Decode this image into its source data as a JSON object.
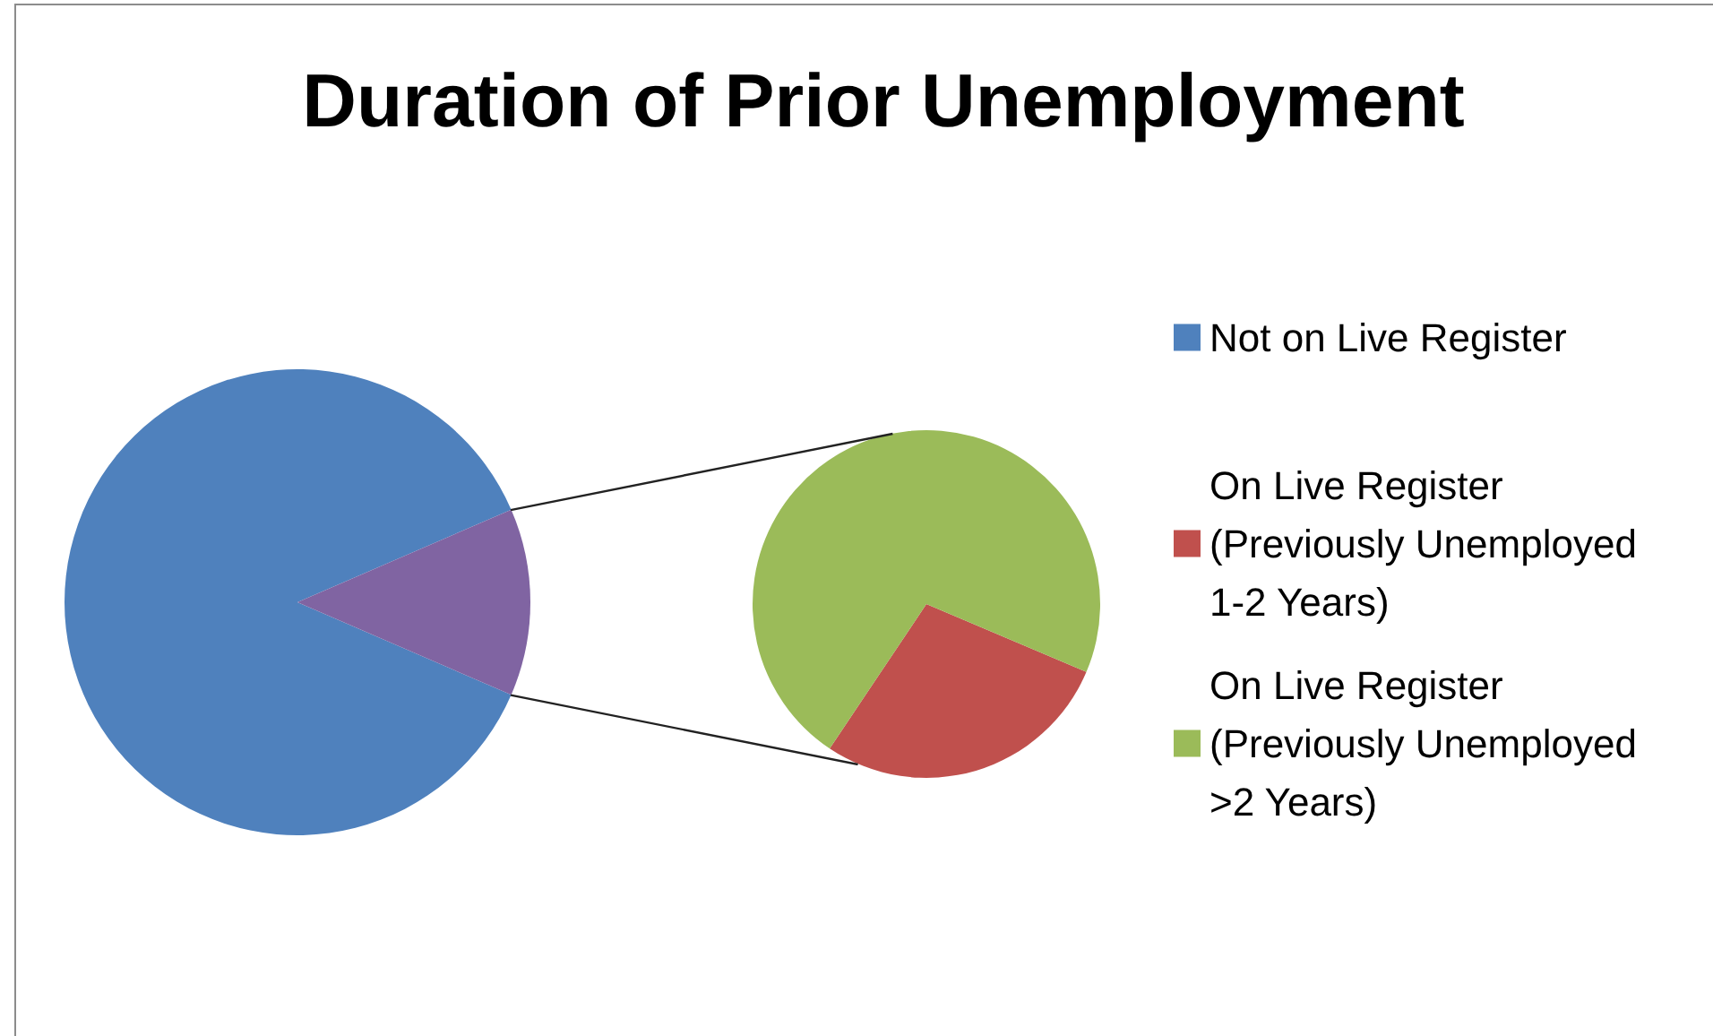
{
  "chart_data": [
    {
      "type": "pie",
      "title": "Duration of Prior Unemployment",
      "categories": [
        "Not on Live Register",
        null
      ],
      "values": [
        87,
        13
      ],
      "colors": [
        "#4f81bd",
        "#8064a2"
      ],
      "legend": "right"
    },
    {
      "type": "pie",
      "categories": [
        "On Live Register (Previously Unemployed 1-2 Years)",
        "On Live Register (Previously Unemployed >2 Years)"
      ],
      "values": [
        28,
        72
      ],
      "colors": [
        "#c0504d",
        "#9bbb59"
      ],
      "legend": "right"
    }
  ]
}
